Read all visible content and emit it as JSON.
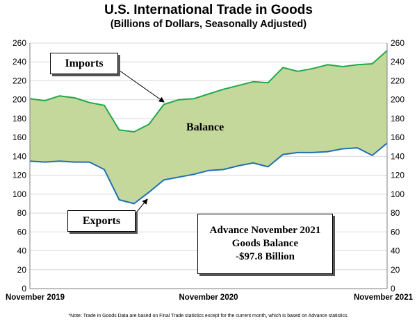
{
  "chart_data": {
    "type": "area",
    "title": "U.S. International Trade in Goods",
    "subtitle": "(Billions of Dollars, Seasonally Adjusted)",
    "ylim": [
      0,
      260
    ],
    "yticks": [
      0,
      20,
      40,
      60,
      80,
      100,
      120,
      140,
      160,
      180,
      200,
      220,
      240,
      260
    ],
    "x_tick_labels": [
      "November 2019",
      "November 2020",
      "November 2021"
    ],
    "x": [
      "Nov 2019",
      "Dec 2019",
      "Jan 2020",
      "Feb 2020",
      "Mar 2020",
      "Apr 2020",
      "May 2020",
      "Jun 2020",
      "Jul 2020",
      "Aug 2020",
      "Sep 2020",
      "Oct 2020",
      "Nov 2020",
      "Dec 2020",
      "Jan 2021",
      "Feb 2021",
      "Mar 2021",
      "Apr 2021",
      "May 2021",
      "Jun 2021",
      "Jul 2021",
      "Aug 2021",
      "Sep 2021",
      "Oct 2021",
      "Nov 2021"
    ],
    "series": [
      {
        "name": "Imports",
        "color": "#22a84a",
        "values": [
          201,
          199,
          204,
          202,
          197,
          194,
          168,
          166,
          174,
          195,
          200,
          201,
          206,
          211,
          215,
          219,
          218,
          234,
          230,
          233,
          237,
          235,
          237,
          238,
          252
        ]
      },
      {
        "name": "Exports",
        "color": "#1f6fb5",
        "values": [
          135,
          134,
          135,
          134,
          134,
          126,
          94,
          90,
          102,
          115,
          118,
          121,
          125,
          126,
          130,
          133,
          129,
          142,
          144,
          144,
          145,
          148,
          149,
          141,
          154
        ]
      }
    ],
    "fill_color": "#c4d89b",
    "balance_label": "Balance",
    "grid": true
  },
  "callouts": {
    "imports": "Imports",
    "exports": "Exports"
  },
  "infobox": {
    "line1": "Advance November 2021",
    "line2": "Goods Balance",
    "line3": "-$97.8 Billion"
  },
  "note": "*Note: Trade in Goods Data are based on Final Trade statistics except for the current month, which is based on Advance statistics."
}
